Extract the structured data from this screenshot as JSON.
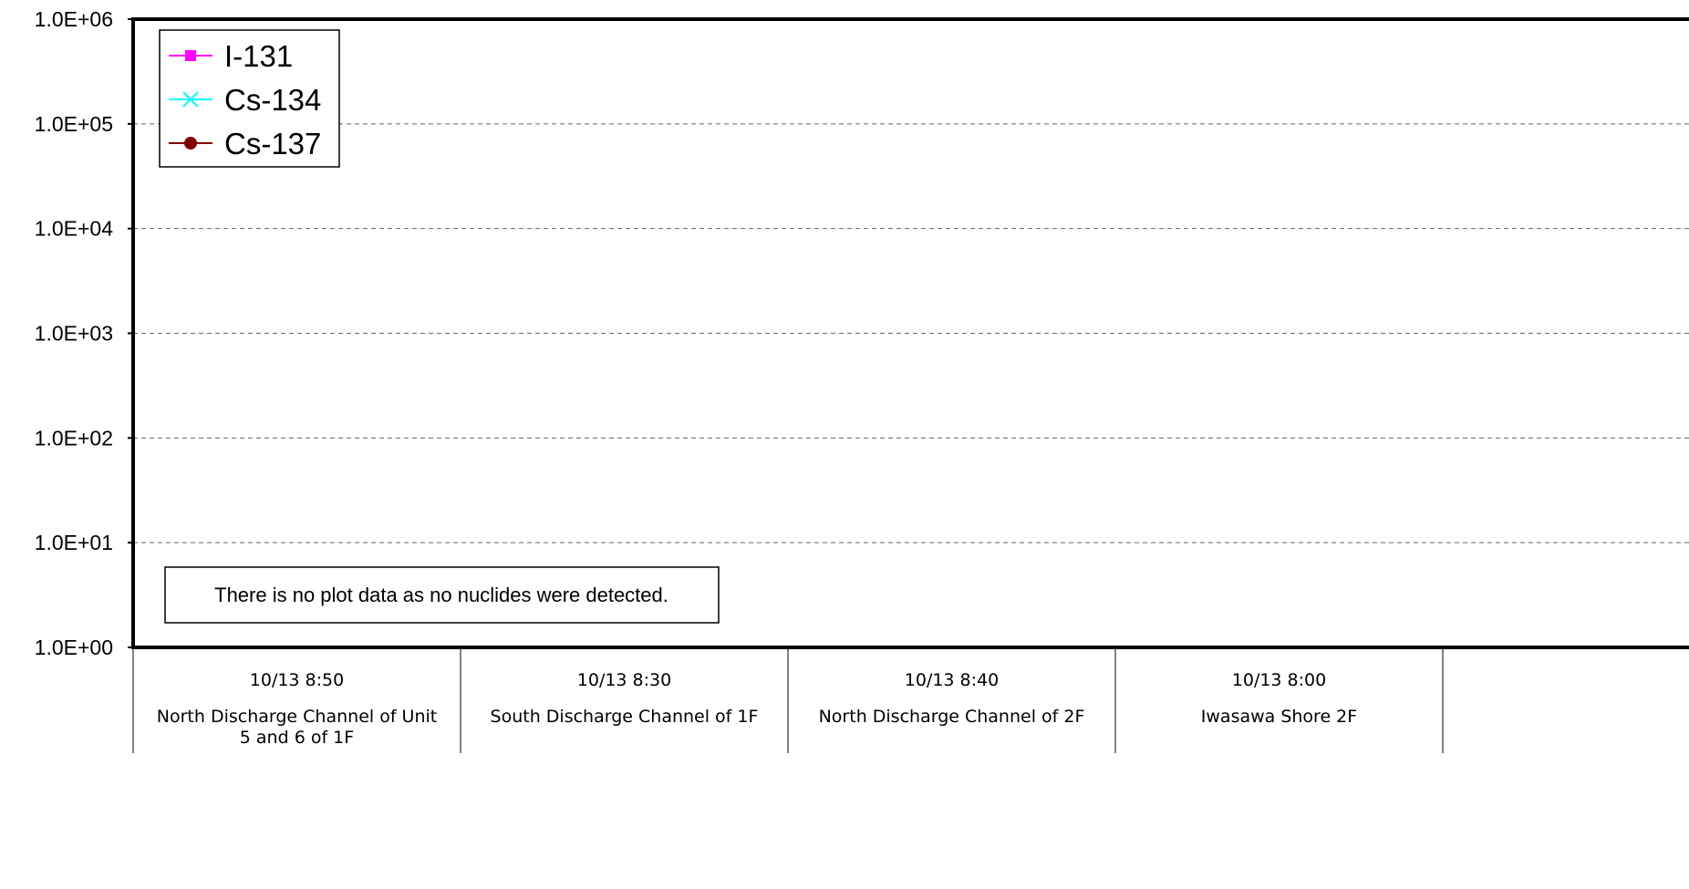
{
  "chart_data": {
    "type": "line",
    "title": "",
    "xlabel": "",
    "ylabel": "",
    "y_scale": "log",
    "ylim": [
      1,
      1000000
    ],
    "y_ticks": [
      {
        "value": 1,
        "label": "1.0E+00"
      },
      {
        "value": 10,
        "label": "1.0E+01"
      },
      {
        "value": 100,
        "label": "1.0E+02"
      },
      {
        "value": 1000,
        "label": "1.0E+03"
      },
      {
        "value": 10000,
        "label": "1.0E+04"
      },
      {
        "value": 100000,
        "label": "1.0E+05"
      },
      {
        "value": 1000000,
        "label": "1.0E+06"
      }
    ],
    "grid": "horizontal dashed",
    "legend_position": "top-left",
    "categories": [
      {
        "time": "10/13 8:50",
        "location": [
          "North Discharge Channel of Unit",
          "5 and 6 of 1F"
        ]
      },
      {
        "time": "10/13 8:30",
        "location": [
          "South Discharge Channel of 1F"
        ]
      },
      {
        "time": "10/13 8:40",
        "location": [
          "North Discharge Channel of 2F"
        ]
      },
      {
        "time": "10/13 8:00",
        "location": [
          "Iwasawa Shore 2F"
        ]
      }
    ],
    "series": [
      {
        "name": "I-131",
        "color": "#ff00ff",
        "marker": "square",
        "values": [
          null,
          null,
          null,
          null
        ]
      },
      {
        "name": "Cs-134",
        "color": "#00ffff",
        "marker": "x",
        "values": [
          null,
          null,
          null,
          null
        ]
      },
      {
        "name": "Cs-137",
        "color": "#800000",
        "marker": "circle",
        "values": [
          null,
          null,
          null,
          null
        ]
      }
    ],
    "annotation": "There is no plot data as no nuclides were detected."
  }
}
